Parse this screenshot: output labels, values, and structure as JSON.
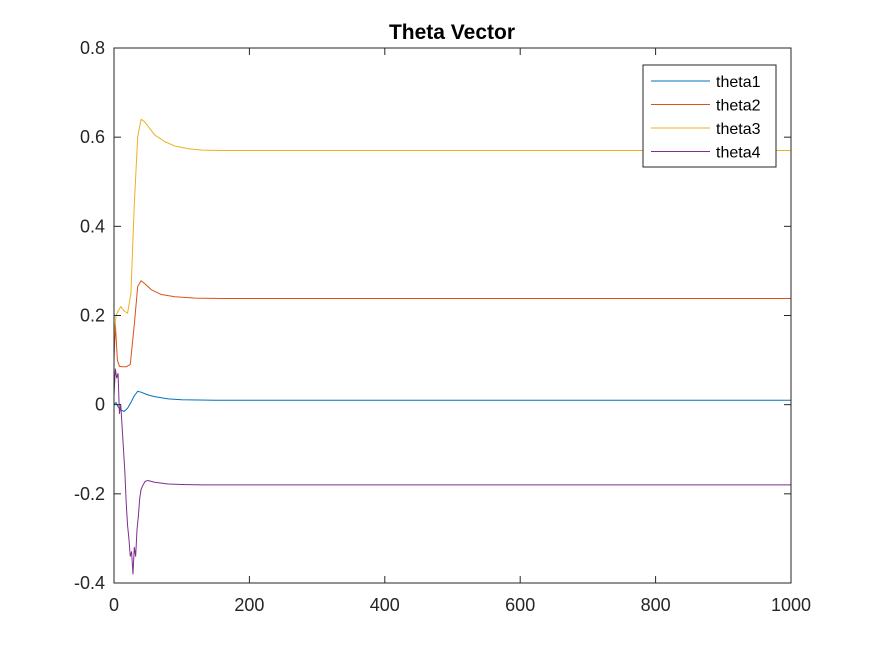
{
  "chart_data": {
    "type": "line",
    "title": "Theta Vector",
    "xlabel": "",
    "ylabel": "",
    "xlim": [
      0,
      1000
    ],
    "ylim": [
      -0.4,
      0.8
    ],
    "xticks": [
      "0",
      "200",
      "400",
      "600",
      "800",
      "1000"
    ],
    "yticks": [
      "-0.4",
      "-0.2",
      "0",
      "0.2",
      "0.4",
      "0.6",
      "0.8"
    ],
    "grid": false,
    "legend_position": "top-right",
    "series": [
      {
        "name": "theta1",
        "color": "#0072BD",
        "x": [
          0,
          3,
          6,
          10,
          15,
          20,
          25,
          30,
          35,
          40,
          50,
          60,
          80,
          100,
          150,
          200,
          400,
          600,
          800,
          1000
        ],
        "y": [
          0.0,
          0.005,
          -0.005,
          -0.012,
          -0.015,
          -0.008,
          0.005,
          0.02,
          0.03,
          0.028,
          0.022,
          0.018,
          0.013,
          0.011,
          0.01,
          0.01,
          0.01,
          0.01,
          0.01,
          0.01
        ]
      },
      {
        "name": "theta2",
        "color": "#D95319",
        "x": [
          0,
          2,
          5,
          8,
          12,
          18,
          24,
          30,
          35,
          40,
          45,
          55,
          70,
          90,
          120,
          160,
          200,
          400,
          600,
          800,
          1000
        ],
        "y": [
          0.1,
          0.18,
          0.1,
          0.086,
          0.085,
          0.085,
          0.09,
          0.18,
          0.265,
          0.278,
          0.272,
          0.258,
          0.247,
          0.242,
          0.239,
          0.238,
          0.238,
          0.238,
          0.238,
          0.238,
          0.238
        ]
      },
      {
        "name": "theta3",
        "color": "#EDB120",
        "x": [
          0,
          3,
          6,
          10,
          15,
          20,
          25,
          30,
          35,
          40,
          45,
          50,
          60,
          75,
          90,
          110,
          130,
          160,
          200,
          400,
          600,
          800,
          1000
        ],
        "y": [
          0.15,
          0.2,
          0.21,
          0.22,
          0.21,
          0.205,
          0.25,
          0.45,
          0.6,
          0.64,
          0.635,
          0.625,
          0.605,
          0.59,
          0.58,
          0.574,
          0.571,
          0.57,
          0.57,
          0.57,
          0.57,
          0.57,
          0.57
        ]
      },
      {
        "name": "theta4",
        "color": "#7E2F8E",
        "x": [
          0,
          2,
          4,
          6,
          8,
          10,
          12,
          14,
          16,
          18,
          20,
          22,
          24,
          26,
          28,
          30,
          32,
          34,
          36,
          38,
          40,
          43,
          46,
          50,
          55,
          60,
          70,
          80,
          100,
          130,
          160,
          200,
          400,
          600,
          800,
          1000
        ],
        "y": [
          0.02,
          0.08,
          0.06,
          0.07,
          -0.02,
          0.0,
          -0.05,
          -0.1,
          -0.15,
          -0.22,
          -0.27,
          -0.3,
          -0.34,
          -0.33,
          -0.38,
          -0.32,
          -0.34,
          -0.28,
          -0.25,
          -0.21,
          -0.19,
          -0.18,
          -0.172,
          -0.17,
          -0.172,
          -0.174,
          -0.176,
          -0.178,
          -0.179,
          -0.18,
          -0.18,
          -0.18,
          -0.18,
          -0.18,
          -0.18,
          -0.18
        ]
      }
    ]
  }
}
